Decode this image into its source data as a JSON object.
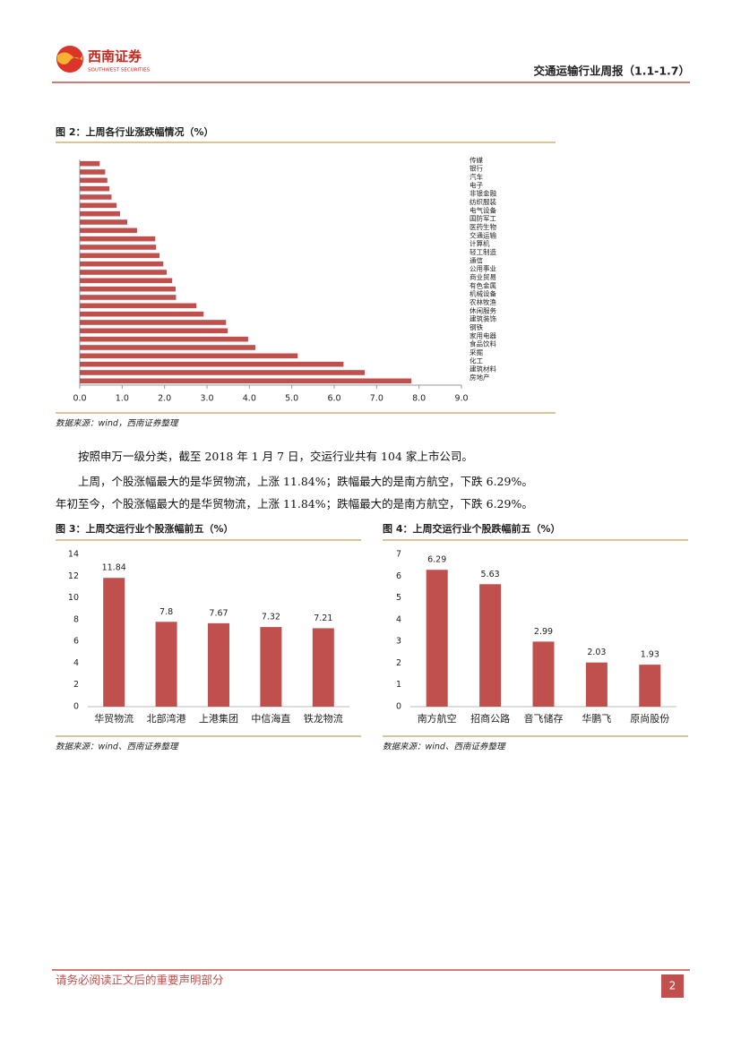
{
  "header": {
    "logo_cn": "西南证券",
    "logo_en": "SOUTHWEST SECURITIES",
    "report_title": "交通运输行业周报（1.1-1.7）"
  },
  "paragraphs": [
    "按照申万一级分类，截至 2018 年 1 月 7 日，交运行业共有 104 家上市公司。",
    "上周，个股涨幅最大的是华贸物流，上涨 11.84%；跌幅最大的是南方航空，下跌 6.29%。",
    "年初至今，个股涨幅最大的是华贸物流，上涨 11.84%；跌幅最大的是南方航空，下跌 6.29%。"
  ],
  "footer": {
    "disclaimer": "请务必阅读正文后的重要声明部分",
    "page": 2
  },
  "chart_data": [
    {
      "type": "bar",
      "orientation": "horizontal",
      "title": "图 2：上周各行业涨跌幅情况（%）",
      "source": "数据来源：wind，西南证券整理",
      "categories": [
        "传媒",
        "银行",
        "汽车",
        "电子",
        "非银金融",
        "纺织服装",
        "电气设备",
        "国防军工",
        "医药生物",
        "交通运输",
        "计算机",
        "轻工制造",
        "通信",
        "公用事业",
        "商业贸易",
        "有色金属",
        "机械设备",
        "农林牧渔",
        "休闲服务",
        "建筑装饰",
        "钢铁",
        "家用电器",
        "食品饮料",
        "采掘",
        "化工",
        "建筑材料",
        "房地产"
      ],
      "values": [
        0.47,
        0.6,
        0.65,
        0.7,
        0.75,
        0.87,
        0.95,
        1.12,
        1.35,
        1.78,
        1.8,
        1.88,
        1.97,
        2.05,
        2.18,
        2.26,
        2.27,
        2.75,
        2.92,
        3.45,
        3.49,
        3.97,
        4.14,
        5.14,
        6.22,
        6.72,
        7.82
      ],
      "color": "#c0504d",
      "xlim": [
        0,
        9
      ],
      "xticks": [
        {
          "value": 0,
          "label": "0.0"
        },
        {
          "value": 1,
          "label": "1.0"
        },
        {
          "value": 2,
          "label": "2.0"
        },
        {
          "value": 3,
          "label": "3.0"
        },
        {
          "value": 4,
          "label": "4.0"
        },
        {
          "value": 5,
          "label": "5.0"
        },
        {
          "value": 6,
          "label": "6.0"
        },
        {
          "value": 7,
          "label": "7.0"
        },
        {
          "value": 8,
          "label": "8.0"
        },
        {
          "value": 9,
          "label": "9.0"
        }
      ]
    },
    {
      "type": "bar",
      "orientation": "vertical",
      "title": "图 3：上周交运行业个股涨幅前五（%）",
      "source": "数据来源：wind、西南证券整理",
      "categories": [
        "华贸物流",
        "北部湾港",
        "上港集团",
        "中信海直",
        "铁龙物流"
      ],
      "values": [
        11.84,
        7.8,
        7.67,
        7.32,
        7.21
      ],
      "color": "#c0504d",
      "ylim": [
        0,
        14
      ],
      "yticks": [
        0,
        2,
        4,
        6,
        8,
        10,
        12,
        14
      ]
    },
    {
      "type": "bar",
      "orientation": "vertical",
      "title": "图 4：上周交运行业个股跌幅前五（%）",
      "source": "数据来源：wind、西南证券整理",
      "categories": [
        "南方航空",
        "招商公路",
        "音飞储存",
        "华鹏飞",
        "原尚股份"
      ],
      "values": [
        6.29,
        5.63,
        2.99,
        2.03,
        1.93
      ],
      "color": "#c0504d",
      "ylim": [
        0,
        7
      ],
      "yticks": [
        0,
        1,
        2,
        3,
        4,
        5,
        6,
        7
      ]
    }
  ]
}
